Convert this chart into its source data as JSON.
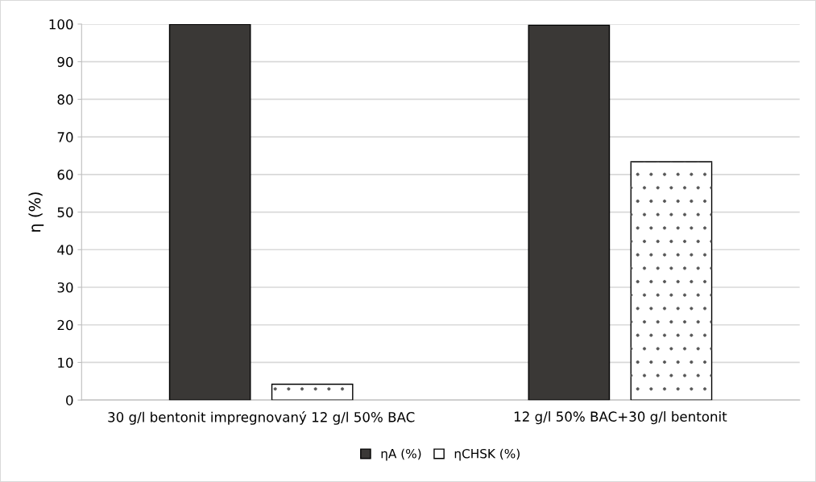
{
  "chart_data": {
    "type": "bar",
    "ylabel": "η (%)",
    "categories": [
      "30 g/l bentonit impregnovaný 12 g/l 50% BAC",
      "12 g/l 50% BAC+30 g/l bentonit"
    ],
    "series": [
      {
        "name": "ηA (%)",
        "color": "#3a3836",
        "values": [
          99.9,
          99.7
        ]
      },
      {
        "name": "ηCHSK (%)",
        "color": "#ffffff",
        "values": [
          4.2,
          63.4
        ]
      }
    ],
    "ylim": [
      0,
      100
    ],
    "yticks": [
      0,
      10,
      20,
      30,
      40,
      50,
      60,
      70,
      80,
      90,
      100
    ],
    "grid": "y",
    "legend": "bottom"
  }
}
